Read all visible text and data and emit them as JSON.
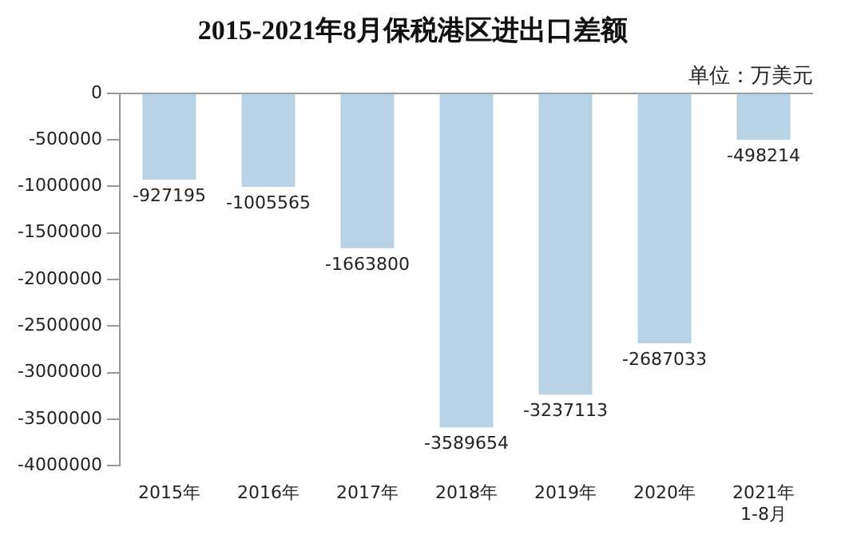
{
  "chart_data": {
    "type": "bar",
    "title": "2015-2021年8月保税港区进出口差额",
    "categories": [
      "2015年",
      "2016年",
      "2017年",
      "2018年",
      "2019年",
      "2020年",
      "2021年\n1-8月"
    ],
    "values": [
      -927195,
      -1005565,
      -1663800,
      -3589654,
      -3237113,
      -2687033,
      -498214
    ],
    "color": "#b8d3e6",
    "ylim": [
      -4000000,
      0
    ],
    "yticks": [
      0,
      -500000,
      -1000000,
      -1500000,
      -2000000,
      -2500000,
      -3000000,
      -3500000,
      -4000000
    ],
    "grid": false,
    "legend": false,
    "data_labels": true,
    "annotations": [
      "单位：万美元"
    ]
  }
}
